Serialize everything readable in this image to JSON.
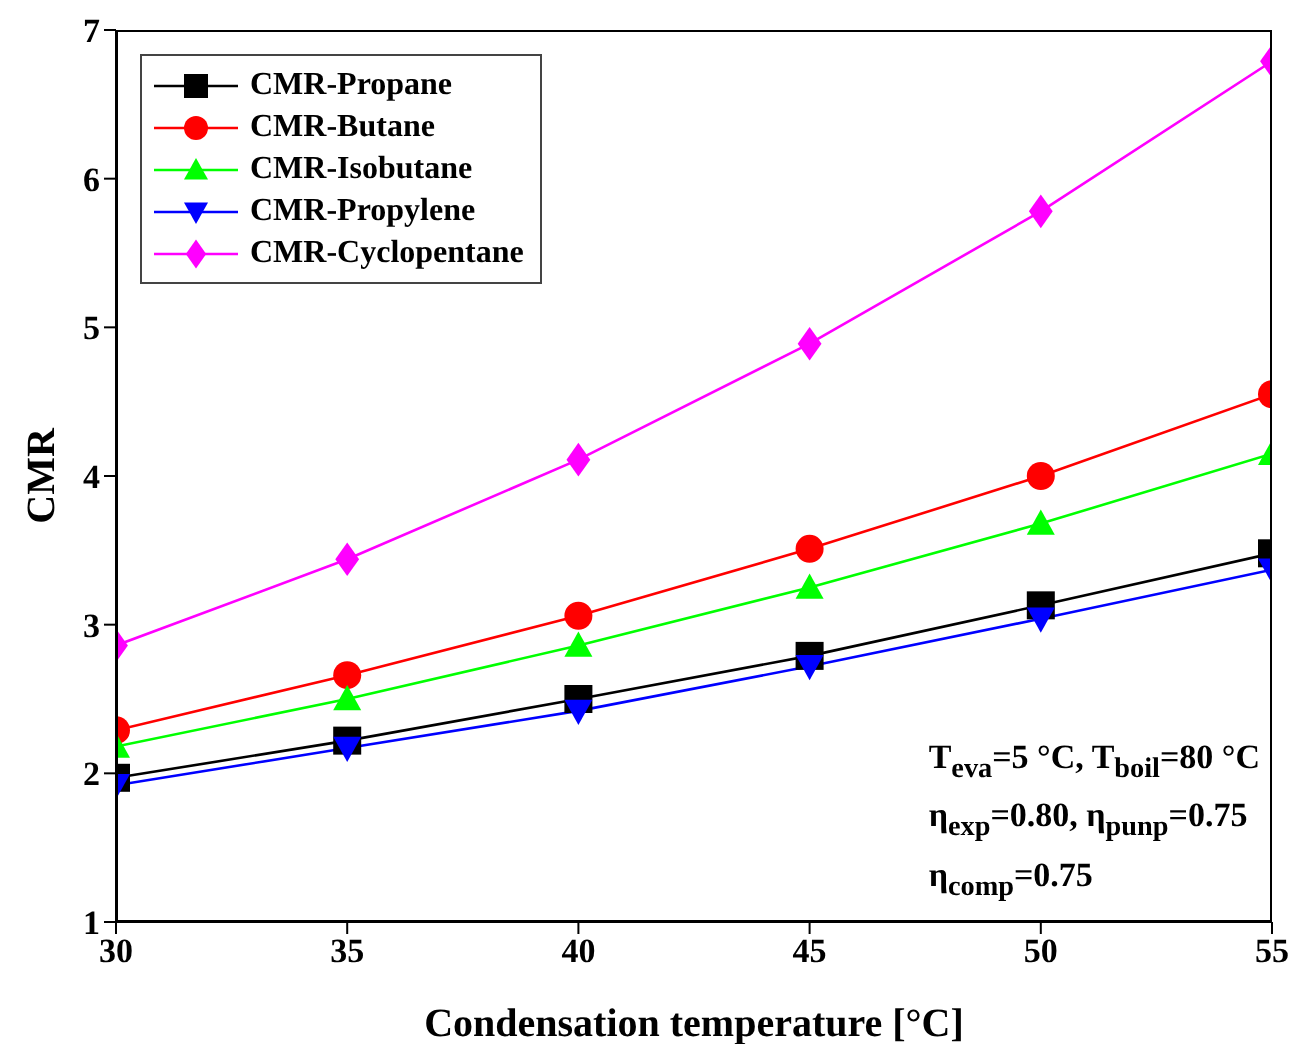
{
  "chart_data": {
    "type": "line",
    "xlabel": "Condensation temperature [°C]",
    "ylabel": "CMR",
    "x": [
      30,
      35,
      40,
      45,
      50,
      55
    ],
    "xlim": [
      30,
      55
    ],
    "xticks": [
      30,
      35,
      40,
      45,
      50,
      55
    ],
    "ylim": [
      1,
      7
    ],
    "yticks": [
      1,
      2,
      3,
      4,
      5,
      6,
      7
    ],
    "legend": "top left",
    "line_style": "solid",
    "series": [
      {
        "name": "CMR-Propane",
        "color": "#000000",
        "marker": "square",
        "values": [
          1.97,
          2.22,
          2.5,
          2.79,
          3.13,
          3.48
        ]
      },
      {
        "name": "CMR-Butane",
        "color": "#ff0000",
        "marker": "circle",
        "values": [
          2.29,
          2.66,
          3.06,
          3.51,
          4.0,
          4.55
        ]
      },
      {
        "name": "CMR-Isobutane",
        "color": "#00ff00",
        "marker": "triangle",
        "values": [
          2.18,
          2.5,
          2.86,
          3.25,
          3.68,
          4.15
        ]
      },
      {
        "name": "CMR-Propylene",
        "color": "#0000ff",
        "marker": "triangle-down",
        "values": [
          1.92,
          2.17,
          2.42,
          2.72,
          3.04,
          3.37
        ]
      },
      {
        "name": "CMR-Cyclopentane",
        "color": "#ff00ff",
        "marker": "diamond",
        "values": [
          2.86,
          3.44,
          4.11,
          4.89,
          5.78,
          6.79
        ]
      }
    ],
    "annotations": [
      "T$_{eva}$=5 °C, T$_{boil}$=80 °C",
      "η$_{exp}$=0.80, η$_{punp}$=0.75",
      "η$_{comp}$=0.75"
    ]
  }
}
